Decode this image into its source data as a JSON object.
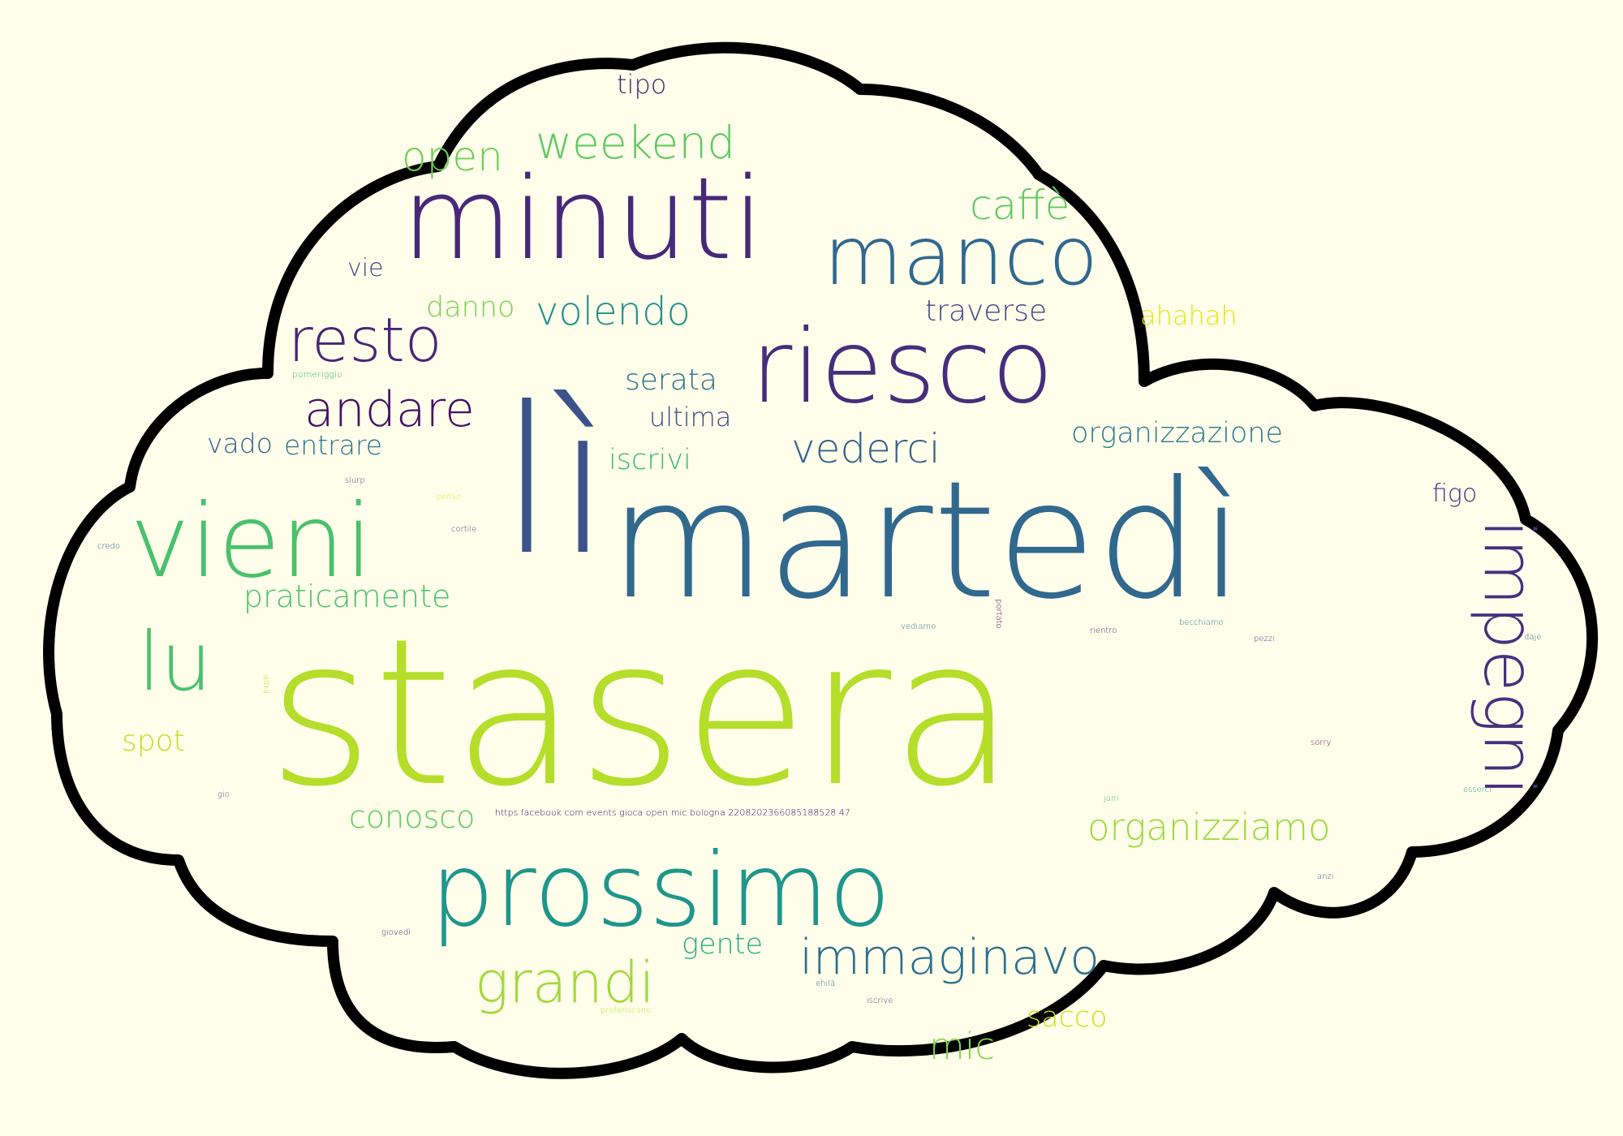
{
  "background_color": "#fefeea",
  "outline_color": "#000000",
  "words": [
    {
      "text": "stasera",
      "color": "#b5de2b"
    },
    {
      "text": "lì",
      "color": "#3b528b"
    },
    {
      "text": "martedì",
      "color": "#31688e"
    },
    {
      "text": "minuti",
      "color": "#482878"
    },
    {
      "text": "riesco",
      "color": "#472d7b"
    },
    {
      "text": "manco",
      "color": "#31688e"
    },
    {
      "text": "vieni",
      "color": "#4ac16d"
    },
    {
      "text": "prossimo",
      "color": "#1f968b"
    },
    {
      "text": "lu",
      "color": "#4ac16d"
    },
    {
      "text": "impegni",
      "color": "#46307e"
    },
    {
      "text": "resto",
      "color": "#482677"
    },
    {
      "text": "andare",
      "color": "#471063"
    },
    {
      "text": "immaginavo",
      "color": "#2d708e"
    },
    {
      "text": "grandi",
      "color": "#a0da39"
    },
    {
      "text": "weekend",
      "color": "#5ec962"
    },
    {
      "text": "open",
      "color": "#6ece58"
    },
    {
      "text": "caffè",
      "color": "#5ec962"
    },
    {
      "text": "volendo",
      "color": "#21918c"
    },
    {
      "text": "vederci",
      "color": "#34618d"
    },
    {
      "text": "organizziamo",
      "color": "#9bd93c"
    },
    {
      "text": "organizzazione",
      "color": "#2a788e"
    },
    {
      "text": "serata",
      "color": "#2c728e"
    },
    {
      "text": "ultima",
      "color": "#3e4989"
    },
    {
      "text": "traverse",
      "color": "#404588"
    },
    {
      "text": "ahahah",
      "color": "#e7e419"
    },
    {
      "text": "danno",
      "color": "#7ad151"
    },
    {
      "text": "praticamente",
      "color": "#4ac16d"
    },
    {
      "text": "conosco",
      "color": "#5ec962"
    },
    {
      "text": "mic",
      "color": "#86d549"
    },
    {
      "text": "sacco",
      "color": "#d0e11c"
    },
    {
      "text": "spot",
      "color": "#c2df23"
    },
    {
      "text": "gente",
      "color": "#27ad81"
    },
    {
      "text": "tipo",
      "color": "#481f70"
    },
    {
      "text": "iscrivi",
      "color": "#3bbb75"
    },
    {
      "text": "entrare",
      "color": "#2c728e"
    },
    {
      "text": "vado",
      "color": "#33638d"
    },
    {
      "text": "vie",
      "color": "#3f4788"
    },
    {
      "text": "figo",
      "color": "#46327e"
    },
    {
      "text": "https facebook com events gioca open mic bologna 2208202366085188528 47",
      "color": "#3b0f70"
    },
    {
      "text": "pomeriggio",
      "color": "#35b779"
    },
    {
      "text": "slurp",
      "color": "#433e85"
    },
    {
      "text": "penso",
      "color": "#dde318"
    },
    {
      "text": "cortile",
      "color": "#443a83"
    },
    {
      "text": "credo",
      "color": "#39568c"
    },
    {
      "text": "portato",
      "color": "#450559"
    },
    {
      "text": "pezzi",
      "color": "#404688"
    },
    {
      "text": "vediamo",
      "color": "#2d708e"
    },
    {
      "text": "rientro",
      "color": "#481b6d"
    },
    {
      "text": "becchiamo",
      "color": "#2a778e"
    },
    {
      "text": "altra",
      "color": "#bddf26"
    },
    {
      "text": "daje",
      "color": "#33638d"
    },
    {
      "text": "sorry",
      "color": "#471164"
    },
    {
      "text": "gio",
      "color": "#3e4989"
    },
    {
      "text": "jam",
      "color": "#52c569"
    },
    {
      "text": "esserci",
      "color": "#20a486"
    },
    {
      "text": "anzi",
      "color": "#3b528b"
    },
    {
      "text": "giovedì",
      "color": "#482475"
    },
    {
      "text": "ehilà",
      "color": "#2c728e"
    },
    {
      "text": "iscrive",
      "color": "#433e85"
    },
    {
      "text": "preferiscano",
      "color": "#b8de29"
    }
  ]
}
